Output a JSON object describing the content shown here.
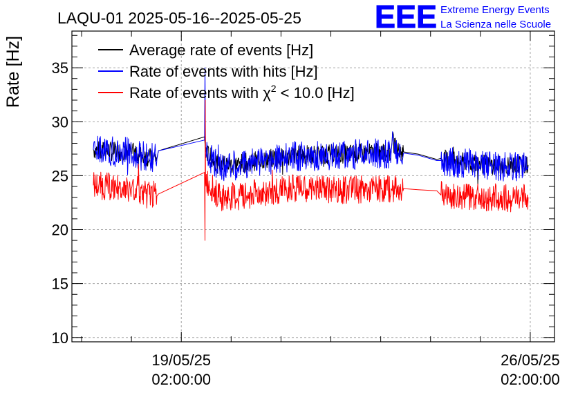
{
  "chart_data": {
    "type": "line",
    "title": "LAQU-01 2025-05-16--2025-05-25",
    "ylabel": "Rate [Hz]",
    "xlabel": "",
    "ylim": [
      9.6,
      38.4
    ],
    "xlim": [
      "2025-05-16 21:20",
      "2025-05-26 13:40"
    ],
    "yticks": [
      10,
      15,
      20,
      25,
      30,
      35
    ],
    "xticks": [
      {
        "line1": "19/05/25",
        "line2": "02:00:00",
        "at": "2025-05-19 02:00"
      },
      {
        "line1": "26/05/25",
        "line2": "02:00:00",
        "at": "2025-05-26 02:00"
      }
    ],
    "grid": true,
    "legend_position": "top-left",
    "series": [
      {
        "name": "Average rate of events [Hz]",
        "color": "#000000",
        "style": "noisy",
        "points": [
          [
            "2025-05-17 07:40",
            27.4
          ],
          [
            "2025-05-17 14:00",
            27.3
          ],
          [
            "2025-05-17 20:00",
            27.2
          ],
          [
            "2025-05-18 02:00",
            27.2
          ],
          [
            "2025-05-18 07:30",
            26.8
          ],
          [
            "2025-05-18 14:15",
            26.6
          ],
          [
            "2025-05-18 15:00",
            27.3
          ],
          [
            "2025-05-19 13:10",
            28.6
          ],
          [
            "2025-05-19 13:40",
            27.2
          ],
          [
            "2025-05-19 20:00",
            26.0
          ],
          [
            "2025-05-20 06:00",
            26.1
          ],
          [
            "2025-05-20 18:00",
            26.5
          ],
          [
            "2025-05-21 08:00",
            26.9
          ],
          [
            "2025-05-22 02:00",
            27.0
          ],
          [
            "2025-05-22 20:00",
            27.1
          ],
          [
            "2025-05-23 07:00",
            27.2
          ],
          [
            "2025-05-23 07:30",
            28.3
          ],
          [
            "2025-05-23 10:00",
            27.3
          ],
          [
            "2025-05-23 13:00",
            27.2
          ],
          [
            "2025-05-23 20:00",
            27.0
          ],
          [
            "2025-05-24 05:00",
            26.5
          ],
          [
            "2025-05-24 07:00",
            26.6
          ],
          [
            "2025-05-24 14:00",
            26.3
          ],
          [
            "2025-05-24 21:00",
            26.2
          ],
          [
            "2025-05-25 07:00",
            26.0
          ],
          [
            "2025-05-25 18:00",
            26.0
          ],
          [
            "2025-05-26 01:00",
            26.0
          ]
        ]
      },
      {
        "name": "Rate of events with hits [Hz]",
        "color": "#0000ff",
        "style": "noisy",
        "points": [
          [
            "2025-05-17 07:40",
            27.4
          ],
          [
            "2025-05-17 14:00",
            27.3
          ],
          [
            "2025-05-17 20:00",
            27.2
          ],
          [
            "2025-05-18 02:00",
            27.2
          ],
          [
            "2025-05-18 07:30",
            26.8
          ],
          [
            "2025-05-18 14:15",
            26.5
          ],
          [
            "2025-05-18 15:00",
            27.3
          ],
          [
            "2025-05-19 13:10",
            28.3
          ],
          [
            "2025-05-19 13:25",
            35.0
          ],
          [
            "2025-05-19 13:40",
            27.1
          ],
          [
            "2025-05-19 20:00",
            25.9
          ],
          [
            "2025-05-20 06:00",
            26.0
          ],
          [
            "2025-05-20 18:00",
            26.4
          ],
          [
            "2025-05-21 08:00",
            26.8
          ],
          [
            "2025-05-22 02:00",
            26.9
          ],
          [
            "2025-05-22 20:00",
            27.0
          ],
          [
            "2025-05-23 07:00",
            27.1
          ],
          [
            "2025-05-23 07:30",
            28.2
          ],
          [
            "2025-05-23 10:00",
            27.2
          ],
          [
            "2025-05-23 13:00",
            27.1
          ],
          [
            "2025-05-23 20:00",
            26.9
          ],
          [
            "2025-05-24 05:00",
            26.4
          ],
          [
            "2025-05-24 07:00",
            26.4
          ],
          [
            "2025-05-24 14:00",
            26.2
          ],
          [
            "2025-05-24 21:00",
            26.1
          ],
          [
            "2025-05-25 07:00",
            25.9
          ],
          [
            "2025-05-25 18:00",
            25.9
          ],
          [
            "2025-05-26 01:00",
            25.9
          ]
        ]
      },
      {
        "name": "Rate of events with χ² < 10.0 [Hz]",
        "color": "#ff0000",
        "style": "noisy",
        "points": [
          [
            "2025-05-17 07:40",
            24.1
          ],
          [
            "2025-05-17 14:00",
            24.0
          ],
          [
            "2025-05-17 20:00",
            23.8
          ],
          [
            "2025-05-18 02:00",
            23.8
          ],
          [
            "2025-05-18 07:30",
            23.6
          ],
          [
            "2025-05-18 14:15",
            23.1
          ],
          [
            "2025-05-18 15:00",
            23.3
          ],
          [
            "2025-05-19 13:10",
            25.3
          ],
          [
            "2025-05-19 13:25",
            19.0
          ],
          [
            "2025-05-19 13:32",
            32.0
          ],
          [
            "2025-05-19 13:40",
            24.7
          ],
          [
            "2025-05-19 20:00",
            23.0
          ],
          [
            "2025-05-20 06:00",
            23.1
          ],
          [
            "2025-05-20 18:00",
            23.5
          ],
          [
            "2025-05-21 08:00",
            23.8
          ],
          [
            "2025-05-22 02:00",
            23.7
          ],
          [
            "2025-05-22 20:00",
            23.7
          ],
          [
            "2025-05-23 07:00",
            23.8
          ],
          [
            "2025-05-23 07:30",
            23.6
          ],
          [
            "2025-05-23 10:00",
            24.0
          ],
          [
            "2025-05-23 13:00",
            23.8
          ],
          [
            "2025-05-23 20:00",
            23.7
          ],
          [
            "2025-05-24 05:00",
            23.6
          ],
          [
            "2025-05-24 07:00",
            23.2
          ],
          [
            "2025-05-24 14:00",
            23.0
          ],
          [
            "2025-05-24 21:00",
            23.0
          ],
          [
            "2025-05-25 07:00",
            23.0
          ],
          [
            "2025-05-25 18:00",
            22.9
          ],
          [
            "2025-05-26 01:00",
            23.0
          ]
        ]
      }
    ],
    "data_gaps": [
      [
        "2025-05-18 15:00",
        "2025-05-19 13:10"
      ],
      [
        "2025-05-23 13:00",
        "2025-05-24 07:00"
      ]
    ],
    "legend": [
      {
        "label": "Average rate of events [Hz]",
        "color": "#000000"
      },
      {
        "label": "Rate of events with hits [Hz]",
        "color": "#0000ff"
      },
      {
        "label_prefix": "Rate of events with χ",
        "label_sup": "2",
        "label_suffix": " < 10.0 [Hz]",
        "color": "#ff0000"
      }
    ]
  },
  "logo": {
    "mark": "EEE",
    "line1": "Extreme Energy Events",
    "line2": "La Scienza nelle Scuole",
    "color": "#0000ff"
  }
}
